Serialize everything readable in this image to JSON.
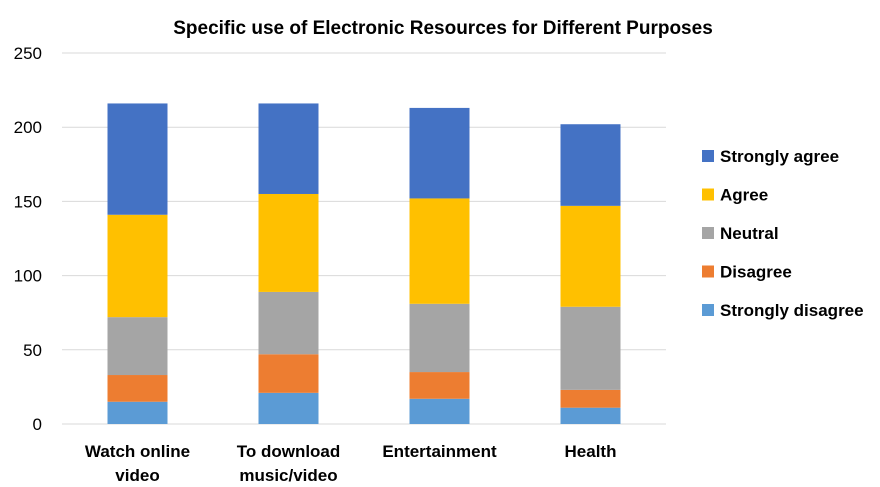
{
  "chart_data": {
    "type": "bar",
    "stacked": true,
    "title": "Specific use of Electronic Resources for Different Purposes",
    "xlabel": "",
    "ylabel": "",
    "categories": [
      [
        "Watch online",
        "video"
      ],
      [
        "To download",
        "music/video"
      ],
      [
        "Entertainment"
      ],
      [
        "Health"
      ]
    ],
    "ylim": [
      0,
      250
    ],
    "yticks": [
      0,
      50,
      100,
      150,
      200,
      250
    ],
    "grid": true,
    "legend_position": "right",
    "series": [
      {
        "name": "Strongly disagree",
        "color": "#5b9bd5",
        "values": [
          15,
          21,
          17,
          11
        ]
      },
      {
        "name": "Disagree",
        "color": "#ed7d31",
        "values": [
          18,
          26,
          18,
          12
        ]
      },
      {
        "name": "Neutral",
        "color": "#a5a5a5",
        "values": [
          39,
          42,
          46,
          56
        ]
      },
      {
        "name": "Agree",
        "color": "#ffc000",
        "values": [
          69,
          66,
          71,
          68
        ]
      },
      {
        "name": "Strongly agree",
        "color": "#4472c4",
        "values": [
          75,
          61,
          61,
          55
        ]
      }
    ]
  }
}
